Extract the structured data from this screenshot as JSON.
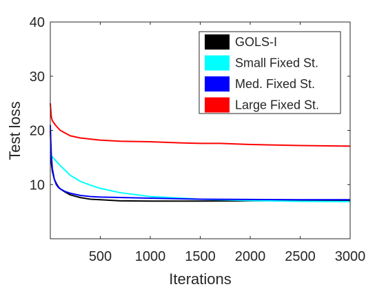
{
  "chart_data": {
    "type": "line",
    "title": "",
    "xlabel": "Iterations",
    "ylabel": "Test loss",
    "xlim": [
      0,
      3000
    ],
    "ylim": [
      0,
      40
    ],
    "xticks": [
      500,
      1000,
      1500,
      2000,
      2500,
      3000
    ],
    "xtick_labels": [
      "500",
      "1000",
      "1500",
      "2000",
      "2500",
      "3000"
    ],
    "yticks": [
      10,
      20,
      30,
      40
    ],
    "ytick_labels": [
      "10",
      "20",
      "30",
      "40"
    ],
    "grid": false,
    "legend_position": "top-right",
    "series": [
      {
        "name": "GOLS-I",
        "color": "#000000",
        "x": [
          0,
          10,
          20,
          40,
          60,
          80,
          100,
          150,
          200,
          300,
          400,
          500,
          700,
          1000,
          1500,
          2000,
          2500,
          3000
        ],
        "y": [
          20.0,
          14.0,
          12.5,
          11.0,
          10.2,
          9.6,
          9.2,
          8.6,
          8.1,
          7.6,
          7.3,
          7.2,
          7.0,
          6.95,
          6.95,
          7.0,
          7.05,
          7.1
        ]
      },
      {
        "name": "Small Fixed St.",
        "color": "#00FFFF",
        "x": [
          0,
          10,
          50,
          100,
          200,
          300,
          400,
          500,
          700,
          1000,
          1500,
          2000,
          2500,
          3000
        ],
        "y": [
          16.0,
          15.3,
          14.5,
          13.5,
          11.7,
          10.6,
          9.9,
          9.3,
          8.5,
          7.8,
          7.3,
          7.05,
          6.9,
          6.85
        ]
      },
      {
        "name": "Med. Fixed St.",
        "color": "#0000FF",
        "x": [
          0,
          5,
          10,
          20,
          40,
          60,
          80,
          100,
          150,
          200,
          300,
          400,
          500,
          1000,
          1500,
          2000,
          2500,
          3000
        ],
        "y": [
          21.0,
          18.0,
          15.5,
          13.0,
          11.0,
          10.0,
          9.5,
          9.2,
          8.7,
          8.4,
          8.0,
          7.8,
          7.7,
          7.5,
          7.3,
          7.25,
          7.2,
          7.2
        ]
      },
      {
        "name": "Large Fixed St.",
        "color": "#FF0000",
        "x": [
          0,
          10,
          20,
          50,
          100,
          200,
          300,
          400,
          500,
          700,
          1000,
          1300,
          1500,
          1700,
          2000,
          2500,
          3000
        ],
        "y": [
          25.0,
          22.5,
          21.8,
          21.0,
          20.0,
          19.0,
          18.6,
          18.4,
          18.2,
          18.0,
          17.9,
          17.7,
          17.6,
          17.6,
          17.4,
          17.2,
          17.1
        ]
      }
    ]
  }
}
